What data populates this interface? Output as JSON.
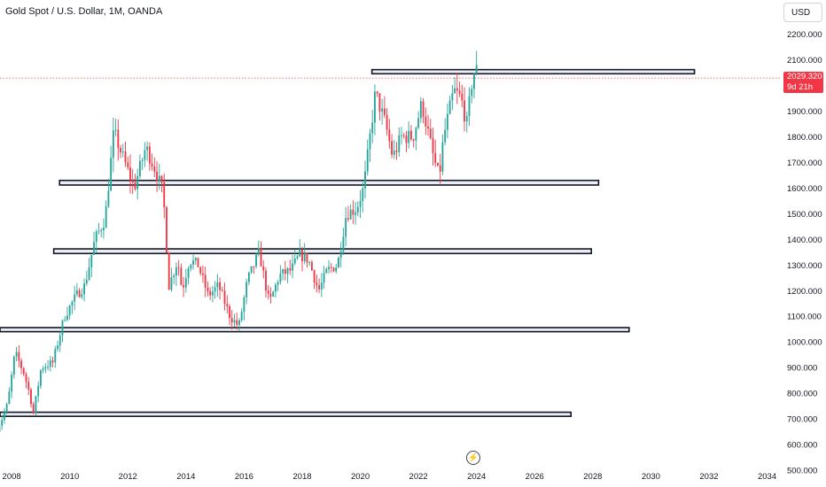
{
  "header": {
    "title": "Gold Spot / U.S. Dollar, 1M, OANDA",
    "currency_button": "USD"
  },
  "price_tag": {
    "price": "2029.320",
    "countdown": "9d 21h"
  },
  "colors": {
    "up": "#26a69a",
    "down": "#f23645",
    "zone_fill": "#d9deee",
    "zone_border": "#131722",
    "price_line": "#f23645"
  },
  "icons": [
    "lightning-icon"
  ],
  "chart_data": {
    "type": "candlestick",
    "title": "Gold Spot / U.S. Dollar, 1M, OANDA",
    "x_ticks": [
      "2008",
      "2010",
      "2012",
      "2014",
      "2016",
      "2018",
      "2020",
      "2022",
      "2024",
      "2026",
      "2028",
      "2030",
      "2032",
      "2034"
    ],
    "y_ticks": [
      "500.000",
      "600.000",
      "700.000",
      "800.000",
      "900.000",
      "1000.000",
      "1100.000",
      "1200.000",
      "1300.000",
      "1400.000",
      "1500.000",
      "1600.000",
      "1700.000",
      "1800.000",
      "1900.000",
      "2000.000",
      "2100.000",
      "2200.000"
    ],
    "ylim": [
      500,
      2230
    ],
    "xlim": [
      2007.6,
      2035.6
    ],
    "last_price": 2029.32,
    "grid": false,
    "anchors": [
      [
        2007.5,
        640
      ],
      [
        2007.75,
        700
      ],
      [
        2007.95,
        760
      ],
      [
        2008.2,
        960
      ],
      [
        2008.5,
        880
      ],
      [
        2008.7,
        800
      ],
      [
        2008.83,
        720
      ],
      [
        2009.1,
        900
      ],
      [
        2009.5,
        920
      ],
      [
        2009.9,
        1100
      ],
      [
        2010.3,
        1180
      ],
      [
        2010.6,
        1220
      ],
      [
        2010.95,
        1400
      ],
      [
        2011.3,
        1480
      ],
      [
        2011.6,
        1820
      ],
      [
        2011.85,
        1740
      ],
      [
        2012.3,
        1600
      ],
      [
        2012.7,
        1760
      ],
      [
        2013.0,
        1680
      ],
      [
        2013.3,
        1580
      ],
      [
        2013.5,
        1220
      ],
      [
        2013.8,
        1320
      ],
      [
        2013.95,
        1200
      ],
      [
        2014.2,
        1320
      ],
      [
        2014.5,
        1300
      ],
      [
        2014.85,
        1180
      ],
      [
        2015.2,
        1220
      ],
      [
        2015.6,
        1100
      ],
      [
        2015.9,
        1060
      ],
      [
        2016.2,
        1240
      ],
      [
        2016.6,
        1350
      ],
      [
        2016.95,
        1150
      ],
      [
        2017.3,
        1260
      ],
      [
        2017.7,
        1280
      ],
      [
        2018.0,
        1340
      ],
      [
        2018.3,
        1320
      ],
      [
        2018.65,
        1200
      ],
      [
        2018.95,
        1280
      ],
      [
        2019.3,
        1300
      ],
      [
        2019.6,
        1500
      ],
      [
        2019.95,
        1520
      ],
      [
        2020.2,
        1600
      ],
      [
        2020.6,
        1970
      ],
      [
        2020.95,
        1850
      ],
      [
        2021.2,
        1720
      ],
      [
        2021.5,
        1800
      ],
      [
        2021.9,
        1800
      ],
      [
        2022.2,
        1930
      ],
      [
        2022.6,
        1720
      ],
      [
        2022.8,
        1640
      ],
      [
        2022.95,
        1800
      ],
      [
        2023.3,
        1980
      ],
      [
        2023.55,
        1950
      ],
      [
        2023.75,
        1850
      ],
      [
        2023.95,
        2040
      ],
      [
        2024.05,
        2060
      ]
    ],
    "zones": [
      {
        "x0": 2020.4,
        "x1": 2031.5,
        "y0": 2046,
        "y1": 2062
      },
      {
        "x0": 2009.65,
        "x1": 2028.2,
        "y0": 1612,
        "y1": 1630
      },
      {
        "x0": 2009.45,
        "x1": 2027.95,
        "y0": 1345,
        "y1": 1363
      },
      {
        "x0": 2007.6,
        "x1": 2029.25,
        "y0": 1040,
        "y1": 1056
      },
      {
        "x0": 2007.6,
        "x1": 2027.25,
        "y0": 710,
        "y1": 726
      }
    ]
  }
}
